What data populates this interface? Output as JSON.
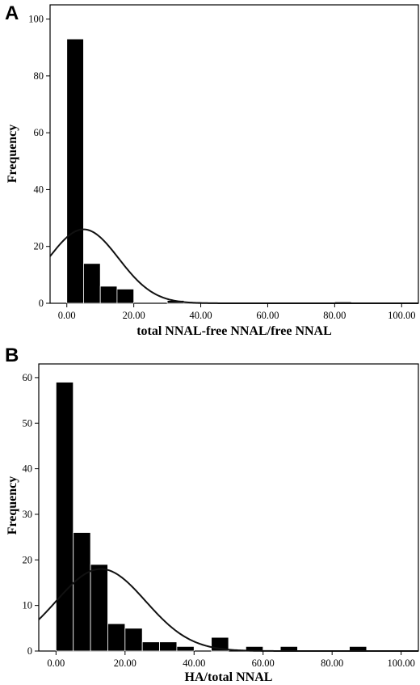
{
  "chart_data": [
    {
      "panel": "A",
      "type": "bar",
      "xlabel": "total NNAL-free NNAL/free NNAL",
      "ylabel": "Frequency",
      "xlim": [
        -5,
        105
      ],
      "ylim": [
        0,
        105
      ],
      "xticks": [
        0,
        20,
        40,
        60,
        80,
        100
      ],
      "xtick_labels": [
        "0.00",
        "20.00",
        "40.00",
        "60.00",
        "80.00",
        "100.00"
      ],
      "yticks": [
        0,
        20,
        40,
        60,
        80,
        100
      ],
      "bin_width": 5,
      "bins": [
        {
          "start": 0,
          "count": 93
        },
        {
          "start": 5,
          "count": 14
        },
        {
          "start": 10,
          "count": 6
        },
        {
          "start": 15,
          "count": 5
        },
        {
          "start": 30,
          "count": 1
        },
        {
          "start": 35,
          "count": 0.5
        },
        {
          "start": 80,
          "count": 0.5
        }
      ],
      "normal_curve": {
        "mean": 5,
        "sd": 10.5,
        "peak": 26
      },
      "grid": false,
      "legend": "none"
    },
    {
      "panel": "B",
      "type": "bar",
      "xlabel": "HA/total NNAL",
      "ylabel": "Frequency",
      "xlim": [
        -5,
        105
      ],
      "ylim": [
        0,
        63
      ],
      "xticks": [
        0,
        20,
        40,
        60,
        80,
        100
      ],
      "xtick_labels": [
        "0.00",
        "20.00",
        "40.00",
        "60.00",
        "80.00",
        "100.00"
      ],
      "yticks": [
        0,
        10,
        20,
        30,
        40,
        50,
        60
      ],
      "bin_width": 5,
      "bins": [
        {
          "start": 0,
          "count": 59
        },
        {
          "start": 5,
          "count": 26
        },
        {
          "start": 10,
          "count": 19
        },
        {
          "start": 15,
          "count": 6
        },
        {
          "start": 20,
          "count": 5
        },
        {
          "start": 25,
          "count": 2
        },
        {
          "start": 30,
          "count": 2
        },
        {
          "start": 35,
          "count": 1
        },
        {
          "start": 45,
          "count": 3
        },
        {
          "start": 55,
          "count": 1
        },
        {
          "start": 65,
          "count": 1
        },
        {
          "start": 85,
          "count": 1
        }
      ],
      "normal_curve": {
        "mean": 13,
        "sd": 13,
        "peak": 18
      },
      "grid": false,
      "legend": "none"
    }
  ]
}
